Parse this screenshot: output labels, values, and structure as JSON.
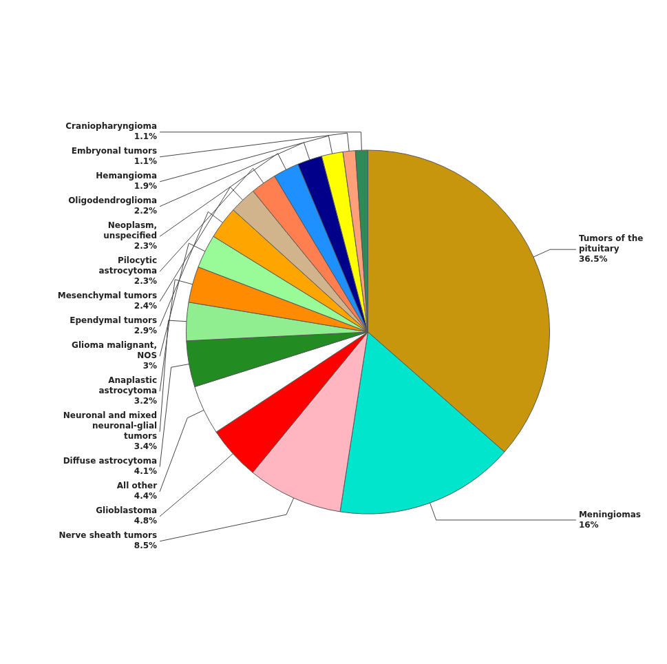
{
  "chart_data": {
    "type": "pie",
    "categories": [
      "Tumors of the\npituitary",
      "Meningiomas",
      "Nerve sheath tumors",
      "Glioblastoma",
      "All other",
      "Diffuse astrocytoma",
      "Neuronal and mixed\nneuronal-glial\ntumors",
      "Anaplastic\nastrocytoma",
      "Glioma malignant,\nNOS",
      "Ependymal tumors",
      "Mesenchymal tumors",
      "Pilocytic\nastrocytoma",
      "Neoplasm,\nunspecified",
      "Oligodendroglioma",
      "Hemangioma",
      "Embryonal tumors",
      "Craniopharyngioma"
    ],
    "values": [
      36.5,
      16.0,
      8.5,
      4.8,
      4.4,
      4.1,
      3.4,
      3.2,
      3.0,
      2.9,
      2.4,
      2.3,
      2.3,
      2.2,
      1.9,
      1.1,
      1.1
    ],
    "value_labels": [
      "36.5%",
      "16%",
      "8.5%",
      "4.8%",
      "4.4%",
      "4.1%",
      "3.4%",
      "3.2%",
      "3%",
      "2.9%",
      "2.4%",
      "2.3%",
      "2.3%",
      "2.2%",
      "1.9%",
      "1.1%",
      "1.1%"
    ],
    "colors": [
      "#C8960C",
      "#00E5CC",
      "#FFB6C1",
      "#FF0000",
      "#FFFFFF",
      "#228B22",
      "#90EE90",
      "#FF8C00",
      "#98FB98",
      "#FFA500",
      "#D2B48C",
      "#FF7F50",
      "#1E90FF",
      "#00008B",
      "#FFFF00",
      "#FFA07A",
      "#2E8B57"
    ],
    "data_labels": true
  }
}
